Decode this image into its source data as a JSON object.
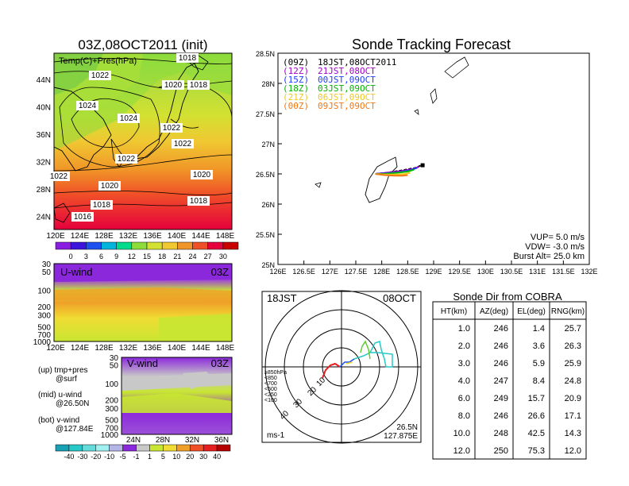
{
  "map_panel": {
    "title": "03Z,08OCT2011  (init)",
    "label": "Temp(C)+Pres(hPa)",
    "lon_ticks": [
      "120E",
      "124E",
      "128E",
      "132E",
      "136E",
      "140E",
      "144E",
      "148E"
    ],
    "lat_ticks": [
      "44N",
      "40N",
      "36N",
      "32N",
      "28N",
      "24N"
    ],
    "isobar_labels": [
      "1018",
      "1022",
      "1020",
      "1018",
      "1024",
      "1024",
      "1022",
      "1022",
      "1022",
      "1022",
      "1020",
      "1020",
      "1018",
      "1018",
      "1016"
    ]
  },
  "temp_colorbar": {
    "labels": [
      "0",
      "3",
      "6",
      "9",
      "12",
      "15",
      "18",
      "21",
      "24",
      "27",
      "30"
    ],
    "colors": [
      "#8a1ee0",
      "#3c14dc",
      "#1e50f0",
      "#00b4dc",
      "#00dc8c",
      "#8cdc3c",
      "#d2e132",
      "#f0c832",
      "#f09628",
      "#f05028",
      "#e6003c",
      "#c80000"
    ]
  },
  "u_panel": {
    "label": "U-wind",
    "time": "03Z",
    "p_ticks": [
      "30",
      "50",
      "100",
      "200",
      "300",
      "500",
      "700",
      "1000"
    ],
    "lon_ticks": [
      "120E",
      "124E",
      "128E",
      "132E",
      "136E",
      "140E",
      "144E",
      "148E"
    ]
  },
  "v_panel": {
    "label": "V-wind",
    "time": "03Z",
    "p_ticks": [
      "30",
      "50",
      "100",
      "200",
      "300",
      "500",
      "700",
      "1000"
    ],
    "lat_ticks": [
      "24N",
      "28N",
      "32N",
      "36N"
    ]
  },
  "legend_notes": {
    "up": "(up) tmp+pres",
    "up2": "@surf",
    "mid": "(mid) u-wind",
    "mid2": "@26.50N",
    "bot": "(bot) v-wind",
    "bot2": "@127.84E"
  },
  "wind_colorbar": {
    "labels": [
      "-40",
      "-30",
      "-20",
      "-10",
      "-5",
      "-1",
      "1",
      "5",
      "10",
      "20",
      "30",
      "40"
    ],
    "colors": [
      "#18a0b4",
      "#28c8c8",
      "#64dcdc",
      "#a0f0f0",
      "#b4b4e6",
      "#8c28dc",
      "#c8c8c8",
      "#c8e632",
      "#f0dc32",
      "#f0a028",
      "#f05028",
      "#e61e1e",
      "#b40000"
    ]
  },
  "tracking": {
    "title": "Sonde Tracking Forecast",
    "lat_ticks": [
      "28.5N",
      "28N",
      "27.5N",
      "27N",
      "26.5N",
      "26N",
      "25.5N",
      "25N"
    ],
    "lon_ticks": [
      "126E",
      "126.5E",
      "127E",
      "127.5E",
      "128E",
      "128.5E",
      "129E",
      "129.5E",
      "130E",
      "130.5E",
      "131E",
      "131.5E",
      "132E"
    ],
    "launches": [
      {
        "code": "(09Z)",
        "time": "18JST,08OCT2011",
        "color": "#000000"
      },
      {
        "code": "(12Z)",
        "time": "21JST,08OCT",
        "color": "#a000c8"
      },
      {
        "code": "(15Z)",
        "time": "00JST,09OCT",
        "color": "#1e3cff"
      },
      {
        "code": "(18Z)",
        "time": "03JST,09OCT",
        "color": "#00b400"
      },
      {
        "code": "(21Z)",
        "time": "06JST,09OCT",
        "color": "#f0c81e"
      },
      {
        "code": "(00Z)",
        "time": "09JST,09OCT",
        "color": "#f07814"
      }
    ],
    "vup": "VUP= 5.0 m/s",
    "vdw": "VDW= -3.0 m/s",
    "burst": "Burst Alt= 25.0 km"
  },
  "polar": {
    "time": "18JST",
    "date": "08OCT",
    "ring_labels": [
      "10",
      "20",
      "30",
      "40"
    ],
    "pressure_legend": [
      {
        "label": "≥850hPa",
        "color": "#e61e1e"
      },
      {
        "label": "<850",
        "color": "#f0a028"
      },
      {
        "label": "<700",
        "color": "#f0dc32"
      },
      {
        "label": "<500",
        "color": "#64c832"
      },
      {
        "label": "<250",
        "color": "#28c8c8"
      },
      {
        "label": "<100",
        "color": "#1e50f0"
      }
    ],
    "unit": "ms-1",
    "loc_lat": "26.5N",
    "loc_lon": "127.875E"
  },
  "cobra_table": {
    "title": "Sonde Dir from COBRA",
    "headers": [
      "HT(km)",
      "AZ(deg)",
      "EL(deg)",
      "RNG(km)"
    ],
    "rows": [
      [
        "1.0",
        "246",
        "1.4",
        "25.7"
      ],
      [
        "2.0",
        "246",
        "3.6",
        "26.3"
      ],
      [
        "3.0",
        "246",
        "5.9",
        "25.9"
      ],
      [
        "4.0",
        "247",
        "8.4",
        "24.8"
      ],
      [
        "6.0",
        "249",
        "15.7",
        "20.9"
      ],
      [
        "8.0",
        "246",
        "26.6",
        "17.1"
      ],
      [
        "10.0",
        "248",
        "42.5",
        "14.3"
      ],
      [
        "12.0",
        "250",
        "75.3",
        "12.0"
      ]
    ]
  },
  "chart_data": [
    {
      "type": "heatmap",
      "title": "03Z,08OCT2011  (init)",
      "subtitle": "Temp(C)+Pres(hPa)",
      "x_range": [
        "120E",
        "149E"
      ],
      "y_range": [
        "22N",
        "47N"
      ],
      "colorbar": [
        0,
        3,
        6,
        9,
        12,
        15,
        18,
        21,
        24,
        27,
        30
      ]
    },
    {
      "type": "heatmap",
      "title": "U-wind",
      "x_range": [
        "120E",
        "149E"
      ],
      "y_ticks": [
        30,
        50,
        100,
        200,
        300,
        500,
        700,
        1000
      ],
      "colorbar": [
        -40,
        -30,
        -20,
        -10,
        -5,
        -1,
        1,
        5,
        10,
        20,
        30,
        40
      ]
    },
    {
      "type": "heatmap",
      "title": "V-wind",
      "y_ticks": [
        30,
        50,
        100,
        200,
        300,
        500,
        700,
        1000
      ]
    },
    {
      "type": "line",
      "title": "Sonde Tracking Forecast",
      "xlim": [
        126,
        132
      ],
      "ylim": [
        25,
        28.5
      ],
      "series": [
        {
          "name": "(09Z) 18JST,08OCT2011",
          "x": [
            127.88,
            128.1,
            128.4,
            128.65,
            128.78
          ],
          "y": [
            26.5,
            26.52,
            26.56,
            26.6,
            26.65
          ]
        },
        {
          "name": "(12Z) 21JST,08OCT",
          "x": [
            127.88,
            128.1,
            128.4,
            128.6,
            128.72
          ],
          "y": [
            26.5,
            26.52,
            26.55,
            26.58,
            26.62
          ]
        },
        {
          "name": "(15Z) 00JST,09OCT",
          "x": [
            127.88,
            128.1,
            128.35,
            128.55,
            128.68
          ],
          "y": [
            26.5,
            26.51,
            26.53,
            26.56,
            26.6
          ]
        },
        {
          "name": "(18Z) 03JST,09OCT",
          "x": [
            127.88,
            128.05,
            128.3,
            128.5,
            128.62
          ],
          "y": [
            26.5,
            26.5,
            26.52,
            26.54,
            26.57
          ]
        },
        {
          "name": "(21Z) 06JST,09OCT",
          "x": [
            127.88,
            128.05,
            128.3,
            128.45,
            128.55
          ],
          "y": [
            26.5,
            26.49,
            26.49,
            26.5,
            26.52
          ]
        },
        {
          "name": "(00Z) 09JST,09OCT",
          "x": [
            127.88,
            128.05,
            128.25,
            128.4,
            128.5
          ],
          "y": [
            26.5,
            26.48,
            26.47,
            26.47,
            26.48
          ]
        }
      ]
    },
    {
      "type": "table",
      "title": "Sonde Dir from COBRA",
      "columns": [
        "HT(km)",
        "AZ(deg)",
        "EL(deg)",
        "RNG(km)"
      ],
      "rows": [
        [
          1.0,
          246,
          1.4,
          25.7
        ],
        [
          2.0,
          246,
          3.6,
          26.3
        ],
        [
          3.0,
          246,
          5.9,
          25.9
        ],
        [
          4.0,
          247,
          8.4,
          24.8
        ],
        [
          6.0,
          249,
          15.7,
          20.9
        ],
        [
          8.0,
          246,
          26.6,
          17.1
        ],
        [
          10.0,
          248,
          42.5,
          14.3
        ],
        [
          12.0,
          250,
          75.3,
          12.0
        ]
      ]
    }
  ]
}
